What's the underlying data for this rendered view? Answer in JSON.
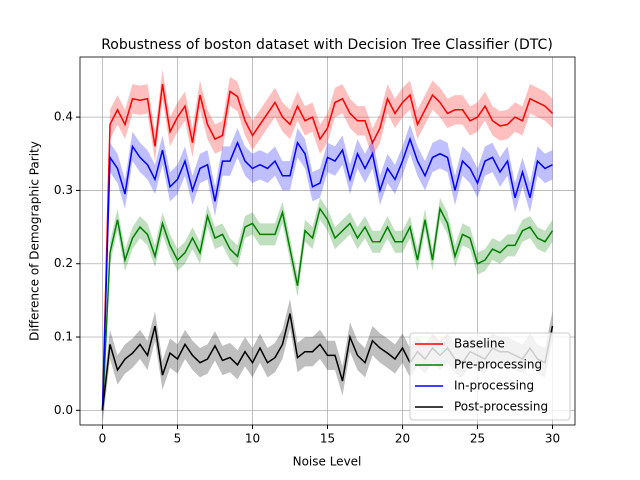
{
  "chart_data": {
    "type": "line",
    "title": "Robustness of boston dataset with Decision Tree Classifier (DTC)",
    "xlabel": "Noise Level",
    "ylabel": "Difference of Demographic Parity",
    "x": [
      0,
      0.5,
      1,
      1.5,
      2,
      2.5,
      3,
      3.5,
      4,
      4.5,
      5,
      5.5,
      6,
      6.5,
      7,
      7.5,
      8,
      8.5,
      9,
      9.5,
      10,
      10.5,
      11,
      11.5,
      12,
      12.5,
      13,
      13.5,
      14,
      14.5,
      15,
      15.5,
      16,
      16.5,
      17,
      17.5,
      18,
      18.5,
      19,
      19.5,
      20,
      20.5,
      21,
      21.5,
      22,
      22.5,
      23,
      23.5,
      24,
      24.5,
      25,
      25.5,
      26,
      26.5,
      27,
      27.5,
      28,
      28.5,
      29,
      29.5,
      30
    ],
    "series": [
      {
        "name": "Baseline",
        "color": "#ff0000",
        "band": 0.02,
        "values": [
          0,
          0.39,
          0.41,
          0.39,
          0.425,
          0.423,
          0.425,
          0.36,
          0.445,
          0.38,
          0.4,
          0.415,
          0.365,
          0.43,
          0.39,
          0.37,
          0.375,
          0.435,
          0.428,
          0.395,
          0.375,
          0.39,
          0.405,
          0.42,
          0.4,
          0.39,
          0.415,
          0.395,
          0.4,
          0.37,
          0.385,
          0.42,
          0.425,
          0.405,
          0.395,
          0.395,
          0.365,
          0.385,
          0.425,
          0.405,
          0.42,
          0.43,
          0.39,
          0.41,
          0.43,
          0.42,
          0.405,
          0.41,
          0.41,
          0.395,
          0.4,
          0.415,
          0.395,
          0.388,
          0.39,
          0.4,
          0.395,
          0.425,
          0.42,
          0.415,
          0.405
        ]
      },
      {
        "name": "Pre-processing",
        "color": "#008000",
        "band": 0.015,
        "values": [
          0,
          0.215,
          0.26,
          0.205,
          0.235,
          0.25,
          0.24,
          0.21,
          0.255,
          0.225,
          0.205,
          0.215,
          0.235,
          0.215,
          0.265,
          0.235,
          0.24,
          0.22,
          0.21,
          0.25,
          0.255,
          0.24,
          0.24,
          0.24,
          0.27,
          0.22,
          0.17,
          0.245,
          0.235,
          0.275,
          0.26,
          0.235,
          0.245,
          0.255,
          0.235,
          0.25,
          0.23,
          0.23,
          0.25,
          0.23,
          0.23,
          0.25,
          0.205,
          0.26,
          0.205,
          0.275,
          0.255,
          0.21,
          0.24,
          0.235,
          0.2,
          0.205,
          0.22,
          0.215,
          0.225,
          0.225,
          0.245,
          0.25,
          0.235,
          0.23,
          0.245
        ]
      },
      {
        "name": "In-processing",
        "color": "#0000ff",
        "band": 0.02,
        "values": [
          0,
          0.345,
          0.33,
          0.295,
          0.36,
          0.345,
          0.335,
          0.315,
          0.355,
          0.305,
          0.315,
          0.34,
          0.3,
          0.33,
          0.335,
          0.285,
          0.34,
          0.34,
          0.365,
          0.34,
          0.33,
          0.335,
          0.33,
          0.34,
          0.32,
          0.32,
          0.365,
          0.35,
          0.305,
          0.31,
          0.345,
          0.34,
          0.355,
          0.315,
          0.35,
          0.33,
          0.35,
          0.3,
          0.33,
          0.315,
          0.34,
          0.37,
          0.34,
          0.32,
          0.345,
          0.35,
          0.345,
          0.3,
          0.34,
          0.33,
          0.31,
          0.34,
          0.345,
          0.325,
          0.34,
          0.29,
          0.325,
          0.29,
          0.34,
          0.33,
          0.335
        ]
      },
      {
        "name": "Post-processing",
        "color": "#000000",
        "band": 0.02,
        "values": [
          0,
          0.09,
          0.055,
          0.07,
          0.078,
          0.09,
          0.075,
          0.115,
          0.048,
          0.078,
          0.07,
          0.09,
          0.075,
          0.065,
          0.07,
          0.088,
          0.068,
          0.072,
          0.062,
          0.08,
          0.065,
          0.085,
          0.065,
          0.072,
          0.09,
          0.132,
          0.072,
          0.08,
          0.08,
          0.09,
          0.075,
          0.075,
          0.04,
          0.1,
          0.075,
          0.065,
          0.095,
          0.085,
          0.078,
          0.07,
          0.085,
          0.065,
          0.08,
          0.07,
          0.085,
          0.075,
          0.085,
          0.07,
          0.065,
          0.08,
          0.075,
          0.07,
          0.085,
          0.08,
          0.08,
          0.075,
          0.07,
          0.085,
          0.07,
          0.065,
          0.115
        ]
      }
    ],
    "xlim": [
      -1.5,
      31.5
    ],
    "xticks": [
      0,
      5,
      10,
      15,
      20,
      25,
      30
    ],
    "ylim": [
      -0.02,
      0.482
    ],
    "yticks": [
      {
        "value": 0,
        "label": "0.0"
      },
      {
        "value": 0.1,
        "label": "0.1"
      },
      {
        "value": 0.2,
        "label": "0.2"
      },
      {
        "value": 0.3,
        "label": "0.3"
      },
      {
        "value": 0.4,
        "label": "0.4"
      }
    ],
    "grid": true,
    "legend": "lower right"
  }
}
